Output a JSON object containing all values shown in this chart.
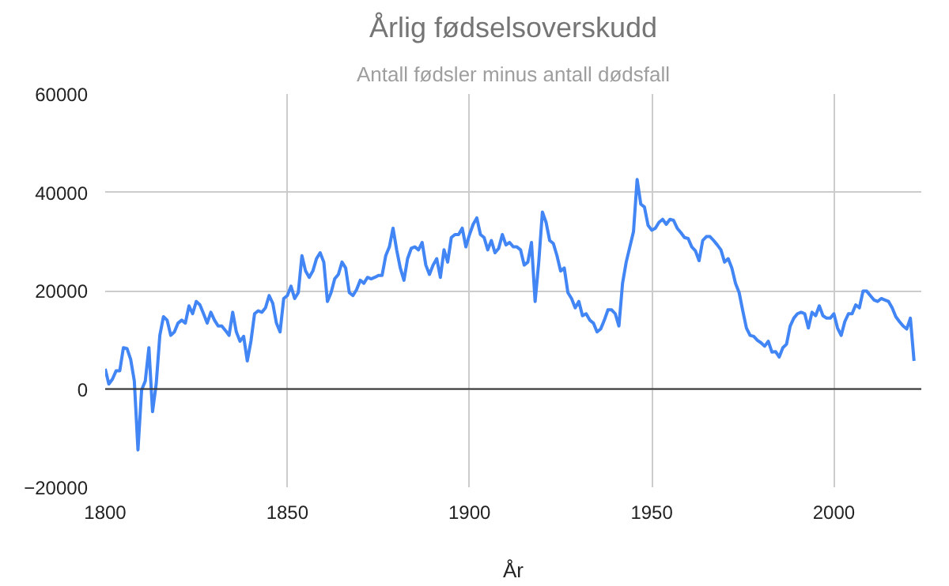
{
  "chart_data": {
    "type": "line",
    "title": "Årlig fødselsoverskudd",
    "subtitle": "Antall fødsler minus antall dødsfall",
    "xlabel": "År",
    "x": [
      1800,
      1801,
      1802,
      1803,
      1804,
      1805,
      1806,
      1807,
      1808,
      1809,
      1810,
      1811,
      1812,
      1813,
      1814,
      1815,
      1816,
      1817,
      1818,
      1819,
      1820,
      1821,
      1822,
      1823,
      1824,
      1825,
      1826,
      1827,
      1828,
      1829,
      1830,
      1831,
      1832,
      1833,
      1834,
      1835,
      1836,
      1837,
      1838,
      1839,
      1840,
      1841,
      1842,
      1843,
      1844,
      1845,
      1846,
      1847,
      1848,
      1849,
      1850,
      1851,
      1852,
      1853,
      1854,
      1855,
      1856,
      1857,
      1858,
      1859,
      1860,
      1861,
      1862,
      1863,
      1864,
      1865,
      1866,
      1867,
      1868,
      1869,
      1870,
      1871,
      1872,
      1873,
      1874,
      1875,
      1876,
      1877,
      1878,
      1879,
      1880,
      1881,
      1882,
      1883,
      1884,
      1885,
      1886,
      1887,
      1888,
      1889,
      1890,
      1891,
      1892,
      1893,
      1894,
      1895,
      1896,
      1897,
      1898,
      1899,
      1900,
      1901,
      1902,
      1903,
      1904,
      1905,
      1906,
      1907,
      1908,
      1909,
      1910,
      1911,
      1912,
      1913,
      1914,
      1915,
      1916,
      1917,
      1918,
      1919,
      1920,
      1921,
      1922,
      1923,
      1924,
      1925,
      1926,
      1927,
      1928,
      1929,
      1930,
      1931,
      1932,
      1933,
      1934,
      1935,
      1936,
      1937,
      1938,
      1939,
      1940,
      1941,
      1942,
      1943,
      1944,
      1945,
      1946,
      1947,
      1948,
      1949,
      1950,
      1951,
      1952,
      1953,
      1954,
      1955,
      1956,
      1957,
      1958,
      1959,
      1960,
      1961,
      1962,
      1963,
      1964,
      1965,
      1966,
      1967,
      1968,
      1969,
      1970,
      1971,
      1972,
      1973,
      1974,
      1975,
      1976,
      1977,
      1978,
      1979,
      1980,
      1981,
      1982,
      1983,
      1984,
      1985,
      1986,
      1987,
      1988,
      1989,
      1990,
      1991,
      1992,
      1993,
      1994,
      1995,
      1996,
      1997,
      1998,
      1999,
      2000,
      2001,
      2002,
      2003,
      2004,
      2005,
      2006,
      2007,
      2008,
      2009,
      2010,
      2011,
      2012,
      2013,
      2014,
      2015,
      2016,
      2017,
      2018,
      2019,
      2020,
      2021,
      2022
    ],
    "series": [
      {
        "color": "#4285f4",
        "values": [
          4100,
          1000,
          2000,
          3700,
          3700,
          8400,
          8200,
          6000,
          1600,
          -12400,
          -200,
          1600,
          8400,
          -4600,
          1000,
          10900,
          14700,
          14000,
          10900,
          11600,
          13400,
          14000,
          13400,
          16900,
          15300,
          17800,
          17100,
          15300,
          13400,
          15600,
          14000,
          12800,
          12800,
          11900,
          10900,
          15600,
          11600,
          9700,
          10700,
          5700,
          9700,
          15300,
          15900,
          15600,
          16500,
          19000,
          17400,
          13400,
          11600,
          18400,
          19000,
          20900,
          18400,
          19600,
          27100,
          24000,
          22700,
          24000,
          26500,
          27700,
          25800,
          17800,
          19600,
          22400,
          23300,
          25800,
          24600,
          19600,
          19000,
          20200,
          22100,
          21500,
          22700,
          22400,
          22700,
          23100,
          23100,
          27100,
          28900,
          32700,
          28300,
          24600,
          22100,
          26500,
          28600,
          28900,
          28300,
          29800,
          25200,
          23300,
          25200,
          26500,
          22700,
          28300,
          25800,
          30800,
          31400,
          31400,
          32700,
          28900,
          31400,
          33500,
          34800,
          31400,
          30800,
          28300,
          30200,
          27700,
          28600,
          31400,
          29300,
          29800,
          28900,
          28900,
          28300,
          25200,
          25800,
          29800,
          17800,
          25800,
          36000,
          33900,
          30200,
          29600,
          27100,
          24000,
          24600,
          19600,
          18400,
          16500,
          17800,
          14900,
          15300,
          14000,
          13400,
          11600,
          12200,
          14000,
          16100,
          16100,
          15300,
          12800,
          21500,
          25800,
          28900,
          32000,
          42600,
          37600,
          37000,
          33300,
          32300,
          32700,
          33900,
          34500,
          33500,
          34500,
          34300,
          32700,
          31800,
          30800,
          30600,
          28900,
          28100,
          26100,
          30200,
          31000,
          31000,
          30200,
          29300,
          28300,
          25800,
          26500,
          24600,
          21500,
          19600,
          15900,
          12400,
          10900,
          10700,
          9900,
          9400,
          8700,
          9700,
          7500,
          7600,
          6500,
          8400,
          9100,
          12800,
          14400,
          15300,
          15600,
          15300,
          12400,
          15600,
          14900,
          16900,
          14900,
          14400,
          14400,
          15300,
          12400,
          10900,
          13700,
          15300,
          15300,
          17100,
          16500,
          19900,
          19900,
          19000,
          18100,
          17800,
          18400,
          18100,
          17800,
          16500,
          14700,
          13700,
          12800,
          12200,
          14400,
          5700
        ]
      }
    ],
    "xlim": [
      1800,
      2024
    ],
    "xticks": [
      1800,
      1850,
      1900,
      1950,
      2000
    ],
    "ylim": [
      -20000,
      60000
    ],
    "yticks": [
      -20000,
      0,
      20000,
      40000,
      60000
    ],
    "ref_lines": [
      {
        "axis": "y",
        "value": 0,
        "color": "#333333"
      }
    ],
    "grid": true
  }
}
